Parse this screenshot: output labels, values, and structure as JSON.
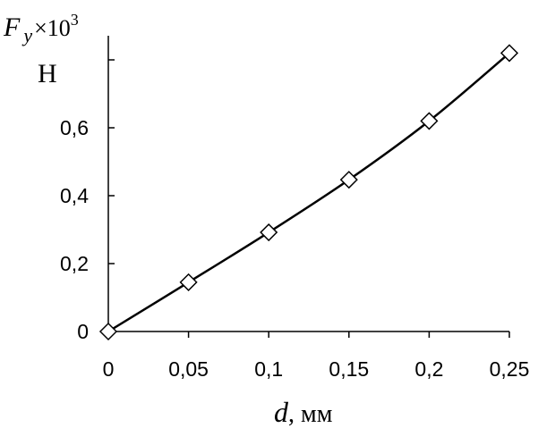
{
  "chart_data": {
    "type": "line",
    "x": [
      0,
      0.05,
      0.1,
      0.15,
      0.2,
      0.25
    ],
    "series": [
      {
        "values": [
          0,
          0.145,
          0.292,
          0.447,
          0.62,
          0.82
        ],
        "marker": "diamond",
        "color": "#000000"
      }
    ],
    "xlim": [
      0,
      0.25
    ],
    "ylim": [
      0,
      0.8
    ],
    "xticks": [
      "0",
      "0,05",
      "0,1",
      "0,15",
      "0,2",
      "0,25"
    ],
    "yticks": [
      "0",
      "0,2",
      "0,4",
      "0,6"
    ],
    "xlabel": {
      "symbol": "d",
      "unit": ", мм"
    },
    "ylabel": {
      "symbol": "F",
      "subscript": "y",
      "multiplier": "×10",
      "exponent": "3",
      "unit": "Н"
    },
    "grid": false
  }
}
